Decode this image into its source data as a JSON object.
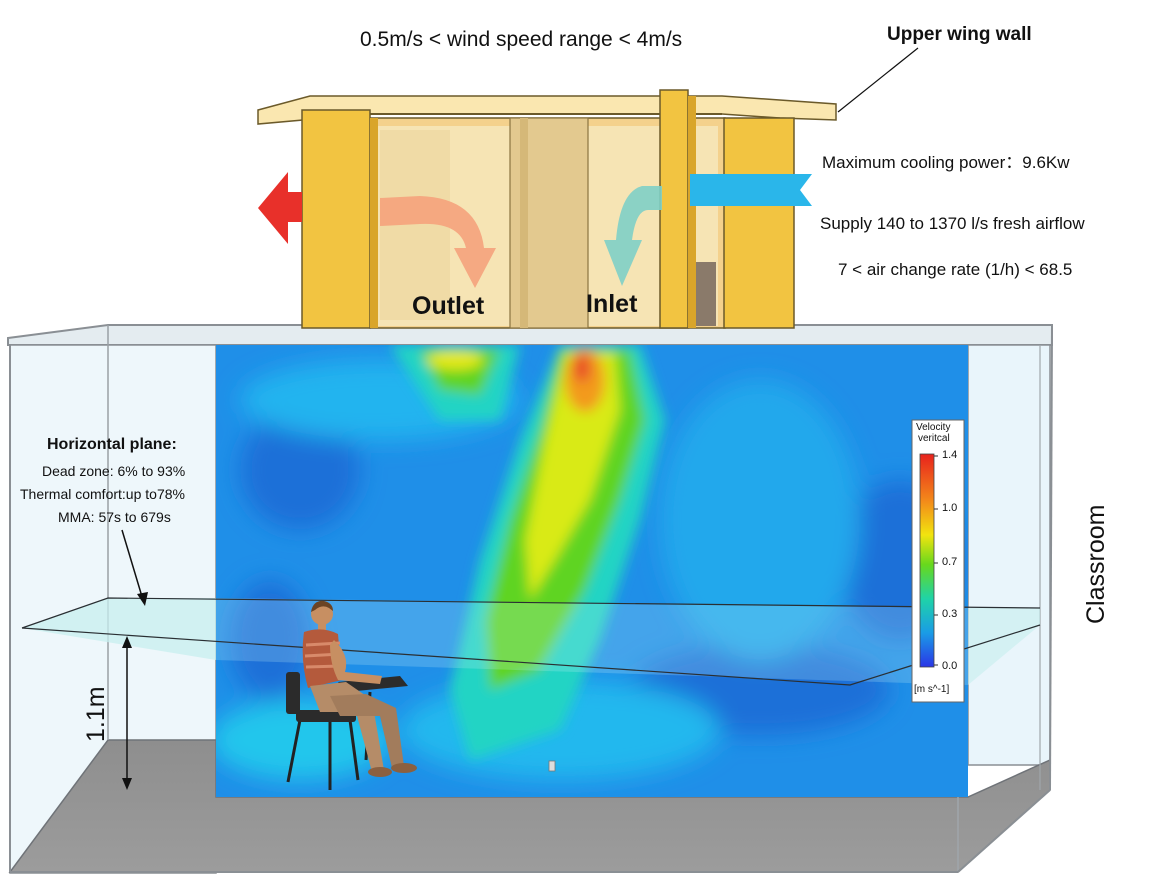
{
  "header": {
    "wind_speed_range": "0.5m/s < wind speed range < 4m/s",
    "upper_wing_wall": "Upper wing wall"
  },
  "specs": {
    "cooling_power": "Maximum cooling power：9.6Kw",
    "airflow": "Supply 140 to 1370 l/s fresh airflow",
    "air_change": "7 < air change rate (1/h) < 68.5"
  },
  "tower": {
    "outlet": "Outlet",
    "inlet": "Inlet"
  },
  "horizontal_plane": {
    "title": "Horizontal plane:",
    "dead_zone": "Dead zone: 6% to 93%",
    "thermal_comfort": "Thermal comfort:up to78%",
    "mma": "MMA: 57s to 679s"
  },
  "dimension": {
    "height": "1.1m"
  },
  "room": {
    "label": "Classroom"
  },
  "legend": {
    "title_line1": "Velocity",
    "title_line2": "veritcal",
    "ticks": [
      "1.4",
      "1.0",
      "0.7",
      "0.3",
      "0.0"
    ],
    "units": "[m s^-1]",
    "range": [
      0.0,
      1.4
    ]
  },
  "colors": {
    "tower_yellow": "#f2c441",
    "outlet_arrow": "#e8302a",
    "inlet_arrow": "#2ab6ea",
    "contour_base": "#1f8fe8"
  }
}
